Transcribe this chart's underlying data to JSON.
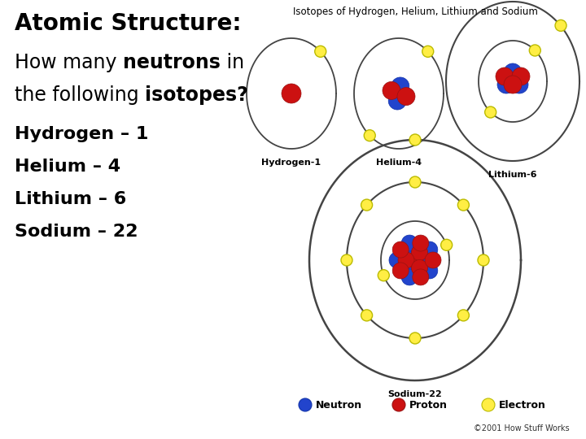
{
  "bg_color": "#ffffff",
  "title_text": "Atomic Structure:",
  "title_fontsize": 20,
  "question_line1_normal": "How many ",
  "question_line1_bold": "neutrons",
  "question_line1_end": " in",
  "question_line2_normal": "the following ",
  "question_line2_bold": "isotopes?",
  "question_fontsize": 17,
  "isotopes_text": [
    "Hydrogen – 1",
    "Helium – 4",
    "Lithium – 6",
    "Sodium – 22"
  ],
  "isotope_fontsize": 16,
  "image_title": "Isotopes of Hydrogen, Helium, Lithium and Sodium",
  "image_title_fontsize": 8.5,
  "neutron_color": "#2244cc",
  "proton_color": "#cc1111",
  "electron_color": "#ffee44",
  "electron_edge": "#bbbb00",
  "orbit_color": "#444444",
  "copyright_text": "©2001 How Stuff Works",
  "legend_neutron_label": "Neutron",
  "legend_proton_label": "Proton",
  "legend_electron_label": "Electron"
}
